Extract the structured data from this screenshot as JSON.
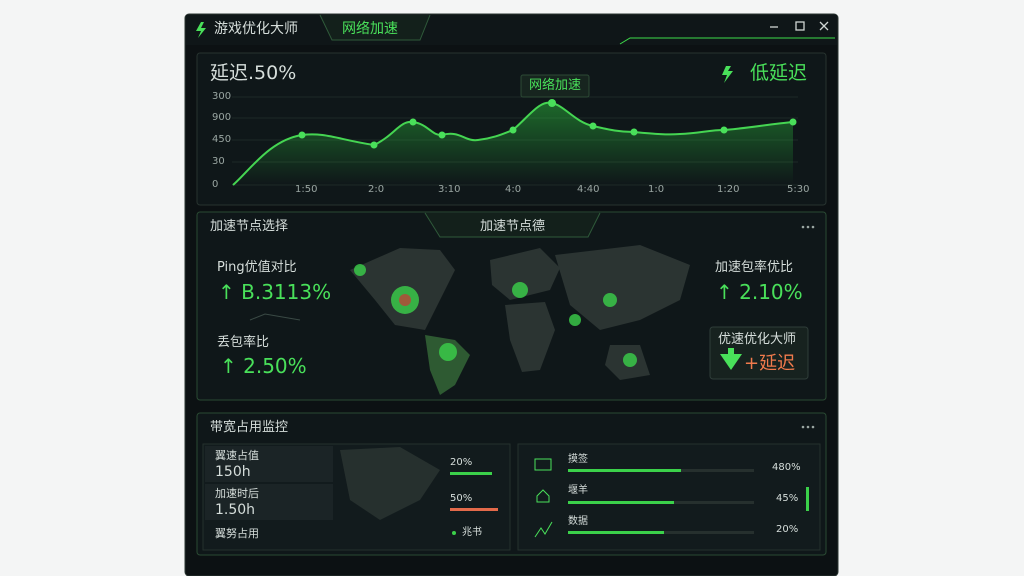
{
  "window": {
    "title": "游戏优化大师",
    "tab": "网络加速"
  },
  "latency_panel": {
    "title": "延迟.50%",
    "badge": "低延迟",
    "callout": "网络加速",
    "y_labels": [
      "300",
      "900",
      "450",
      "30",
      "0"
    ],
    "x_labels": [
      "1:50",
      "2:0",
      "3:10",
      "4:0",
      "4:40",
      "1:0",
      "1:20",
      "5:30"
    ]
  },
  "node_panel": {
    "title": "加速节点选择",
    "tab": "加速节点德",
    "stats": [
      {
        "label": "Ping优值对比",
        "value": "B.3113%"
      },
      {
        "label": "丢包率比",
        "value": "2.50%"
      },
      {
        "label": "加速包率优比",
        "value": "2.10%"
      }
    ],
    "card": {
      "title": "优速优化大师",
      "value": "+延迟"
    }
  },
  "bandwidth_panel": {
    "title": "带宽占用监控",
    "left_rows": [
      {
        "label": "翼速占值",
        "value": "150h"
      },
      {
        "label": "加速时后",
        "value": "1.50h"
      },
      {
        "label": "翼努占用"
      }
    ],
    "left_bars": [
      "20%",
      "50%",
      "兆书"
    ],
    "right_rows": [
      {
        "label": "摸签",
        "value": "480%"
      },
      {
        "label": "堰羊",
        "value": "45%"
      },
      {
        "label": "数据",
        "value": "20%"
      }
    ]
  }
}
